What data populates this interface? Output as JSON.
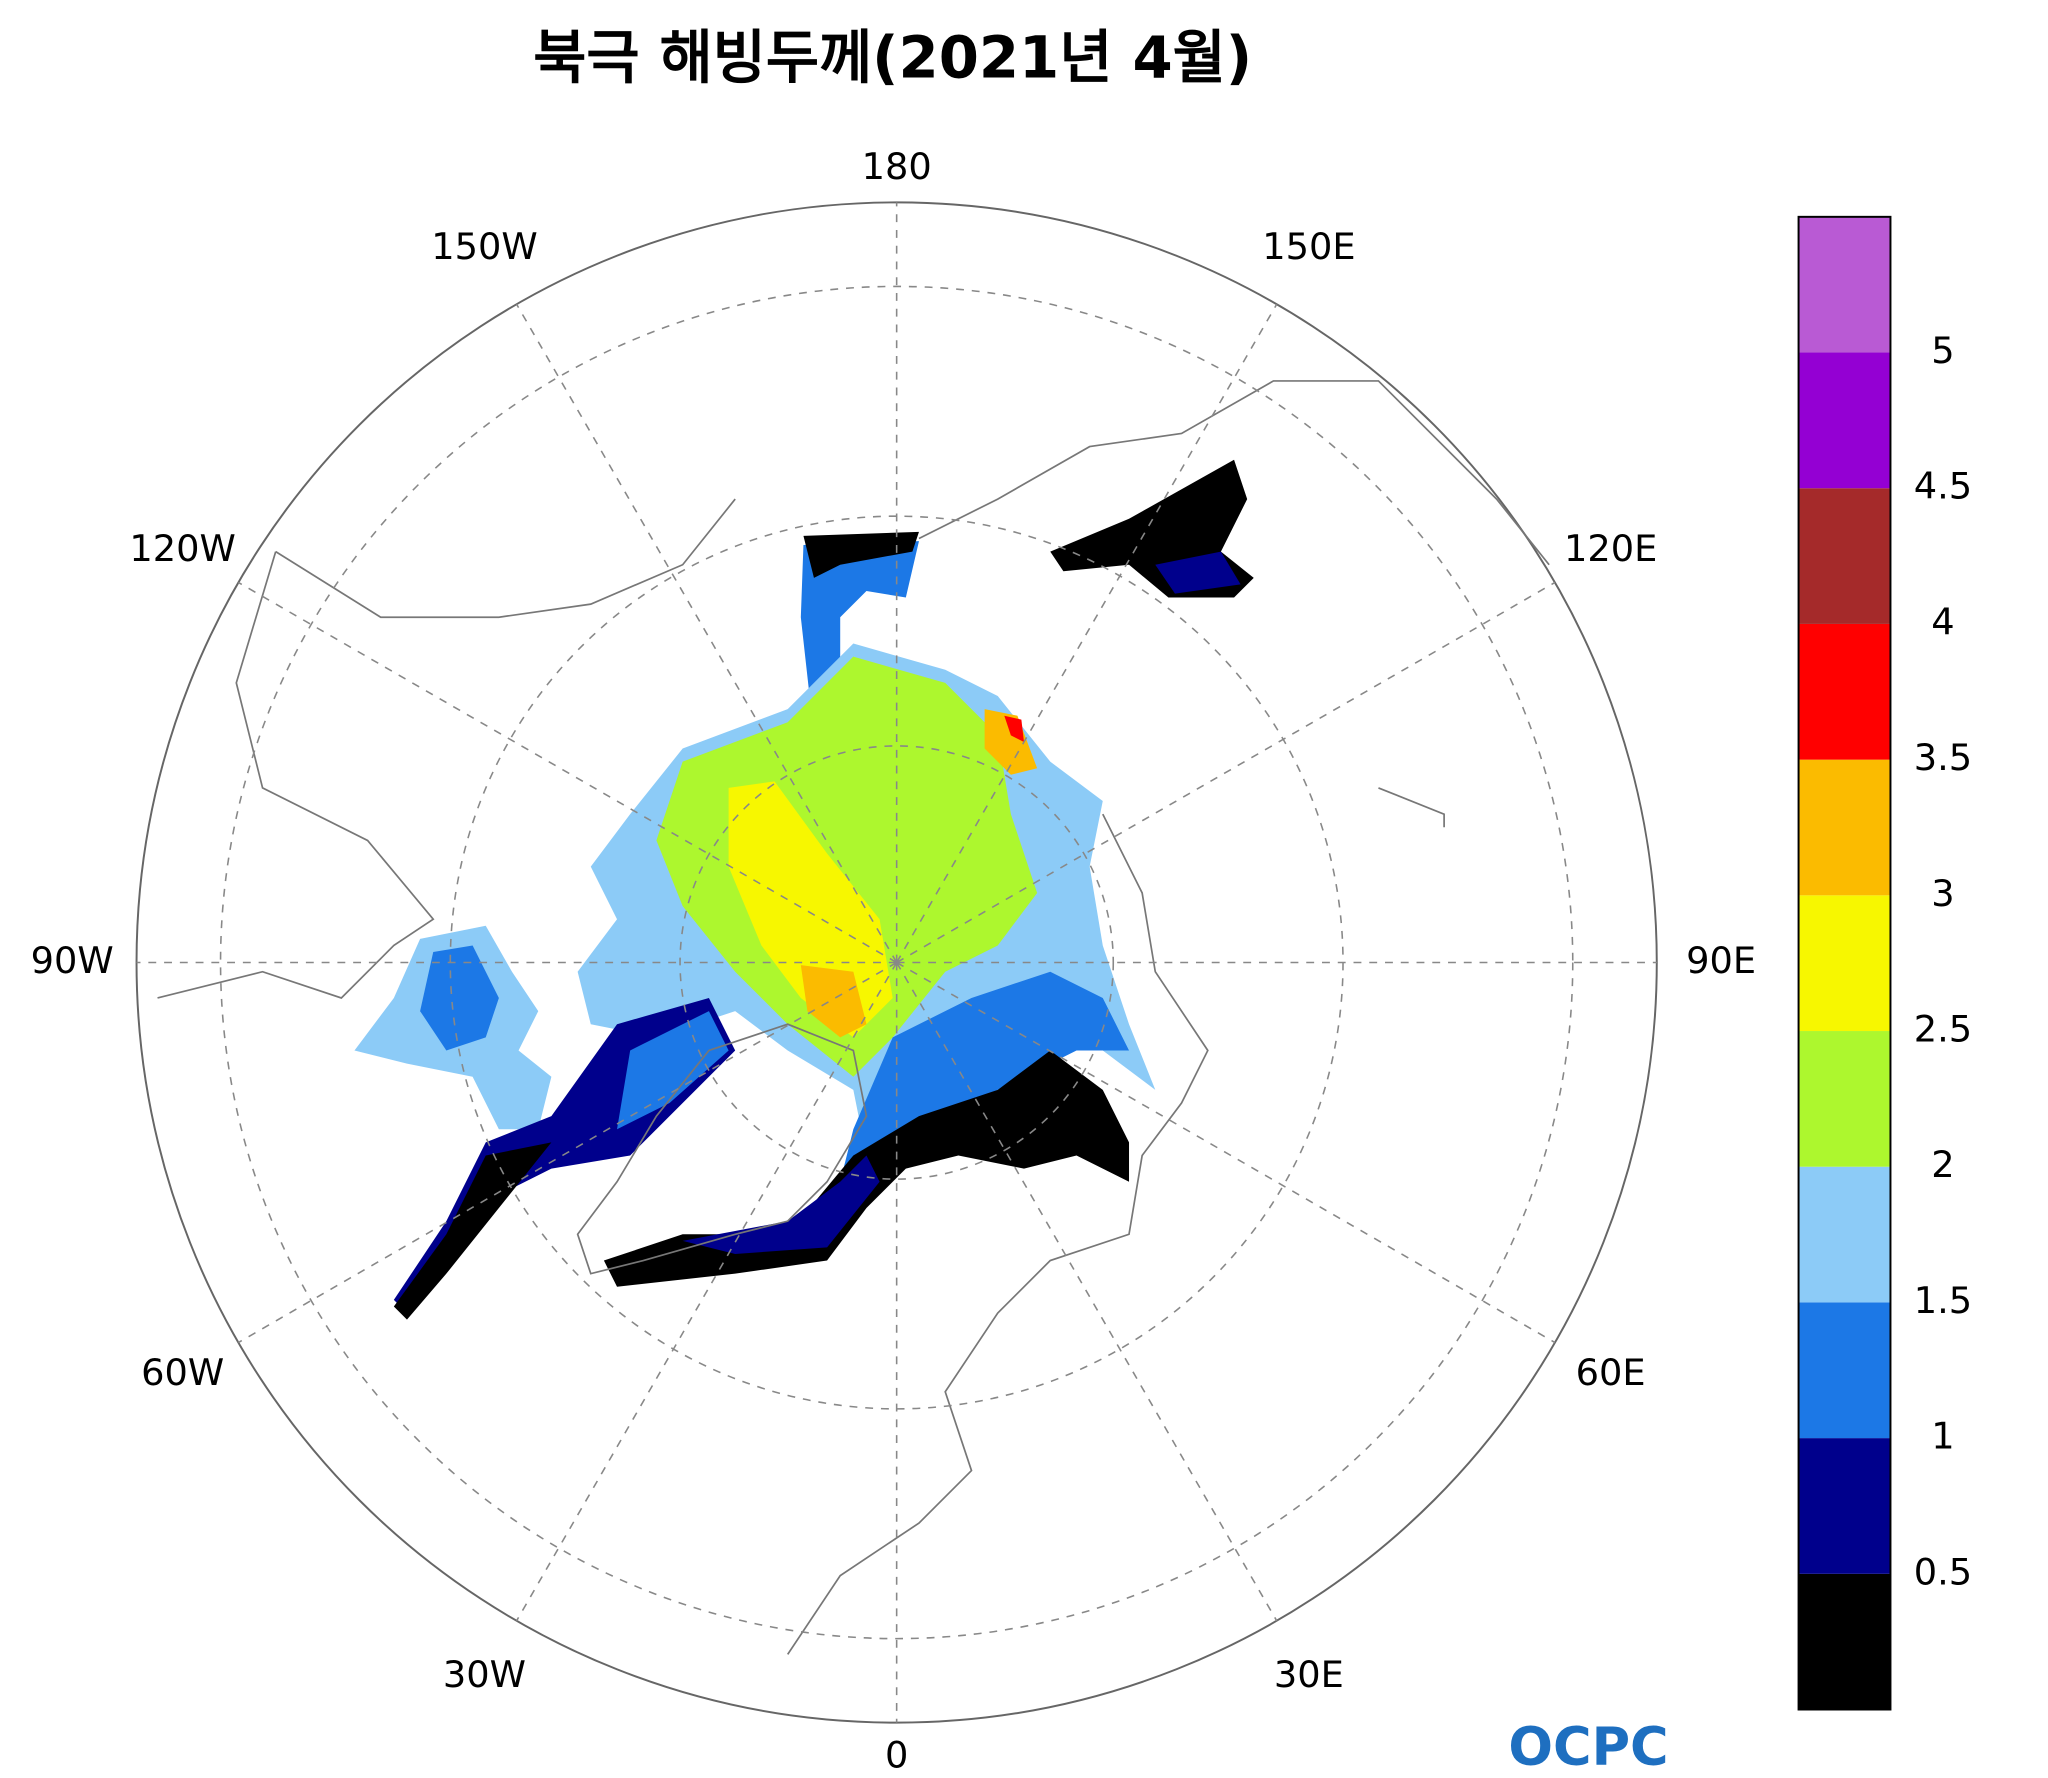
{
  "map": {
    "title": "북극 해빙두께(2021년 4월)",
    "meridian_labels": [
      "0",
      "30E",
      "60E",
      "90E",
      "120E",
      "150E",
      "180",
      "150W",
      "120W",
      "90W",
      "60W",
      "30W"
    ],
    "colorbar": {
      "levels": [
        0.5,
        1,
        1.5,
        2,
        2.5,
        3,
        3.5,
        4,
        4.5,
        5
      ],
      "colors": [
        "#000000",
        "#00008c",
        "#1c78e6",
        "#8ccbf7",
        "#adf72e",
        "#f7f700",
        "#fbbb00",
        "#ff0000",
        "#a52a2a",
        "#9400d3",
        "#b95ad4"
      ]
    },
    "logo": "OCPC"
  }
}
